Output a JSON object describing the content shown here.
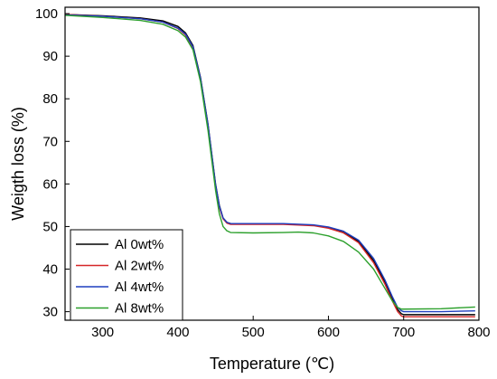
{
  "chart_data": {
    "type": "line",
    "title": "",
    "xlabel": "Temperature (℃)",
    "ylabel": "Weigth loss (%)",
    "xlim": [
      250,
      800
    ],
    "ylim": [
      28,
      101.5
    ],
    "x_ticks": [
      300,
      400,
      500,
      600,
      700,
      800
    ],
    "y_ticks": [
      30,
      40,
      50,
      60,
      70,
      80,
      90,
      100
    ],
    "grid": false,
    "legend_position": "bottom-left",
    "series": [
      {
        "name": "Al 0wt%",
        "color": "#000000",
        "points": [
          [
            250,
            99.8
          ],
          [
            300,
            99.5
          ],
          [
            350,
            99.0
          ],
          [
            380,
            98.3
          ],
          [
            400,
            97.0
          ],
          [
            410,
            95.5
          ],
          [
            420,
            92.5
          ],
          [
            430,
            85.0
          ],
          [
            440,
            74.0
          ],
          [
            445,
            67.0
          ],
          [
            450,
            60.0
          ],
          [
            455,
            55.0
          ],
          [
            460,
            52.0
          ],
          [
            465,
            51.0
          ],
          [
            470,
            50.7
          ],
          [
            500,
            50.6
          ],
          [
            540,
            50.6
          ],
          [
            580,
            50.3
          ],
          [
            600,
            49.8
          ],
          [
            620,
            48.8
          ],
          [
            640,
            46.5
          ],
          [
            660,
            42.0
          ],
          [
            675,
            37.0
          ],
          [
            685,
            33.0
          ],
          [
            692,
            30.5
          ],
          [
            697,
            29.5
          ],
          [
            700,
            29.3
          ],
          [
            750,
            29.3
          ],
          [
            795,
            29.3
          ]
        ]
      },
      {
        "name": "Al 2wt%",
        "color": "#d62728",
        "points": [
          [
            250,
            99.8
          ],
          [
            300,
            99.4
          ],
          [
            350,
            98.8
          ],
          [
            380,
            98.0
          ],
          [
            400,
            96.5
          ],
          [
            410,
            95.0
          ],
          [
            420,
            92.0
          ],
          [
            430,
            84.5
          ],
          [
            440,
            73.5
          ],
          [
            445,
            66.5
          ],
          [
            450,
            59.5
          ],
          [
            455,
            54.5
          ],
          [
            460,
            51.8
          ],
          [
            465,
            50.8
          ],
          [
            470,
            50.5
          ],
          [
            500,
            50.5
          ],
          [
            540,
            50.5
          ],
          [
            580,
            50.2
          ],
          [
            600,
            49.6
          ],
          [
            620,
            48.5
          ],
          [
            640,
            46.2
          ],
          [
            660,
            41.5
          ],
          [
            675,
            36.5
          ],
          [
            685,
            32.5
          ],
          [
            692,
            30.0
          ],
          [
            697,
            29.0
          ],
          [
            700,
            28.8
          ],
          [
            750,
            28.8
          ],
          [
            795,
            28.8
          ]
        ]
      },
      {
        "name": "Al 4wt%",
        "color": "#1f3fbf",
        "points": [
          [
            250,
            99.7
          ],
          [
            300,
            99.4
          ],
          [
            350,
            98.8
          ],
          [
            380,
            98.0
          ],
          [
            400,
            96.6
          ],
          [
            410,
            95.2
          ],
          [
            420,
            92.2
          ],
          [
            430,
            84.8
          ],
          [
            440,
            73.8
          ],
          [
            445,
            66.8
          ],
          [
            450,
            59.8
          ],
          [
            455,
            54.8
          ],
          [
            460,
            52.0
          ],
          [
            465,
            51.0
          ],
          [
            470,
            50.7
          ],
          [
            500,
            50.7
          ],
          [
            540,
            50.7
          ],
          [
            580,
            50.4
          ],
          [
            600,
            49.9
          ],
          [
            620,
            48.9
          ],
          [
            640,
            46.8
          ],
          [
            660,
            42.5
          ],
          [
            675,
            37.5
          ],
          [
            685,
            33.5
          ],
          [
            692,
            31.0
          ],
          [
            697,
            30.2
          ],
          [
            700,
            30.0
          ],
          [
            750,
            30.0
          ],
          [
            795,
            30.2
          ]
        ]
      },
      {
        "name": "Al 8wt%",
        "color": "#2ca02c",
        "points": [
          [
            250,
            99.6
          ],
          [
            300,
            99.1
          ],
          [
            350,
            98.4
          ],
          [
            380,
            97.5
          ],
          [
            400,
            96.0
          ],
          [
            410,
            94.5
          ],
          [
            420,
            91.5
          ],
          [
            430,
            84.0
          ],
          [
            440,
            72.5
          ],
          [
            445,
            65.5
          ],
          [
            450,
            58.5
          ],
          [
            455,
            53.0
          ],
          [
            460,
            50.0
          ],
          [
            465,
            49.0
          ],
          [
            470,
            48.6
          ],
          [
            500,
            48.5
          ],
          [
            540,
            48.6
          ],
          [
            560,
            48.7
          ],
          [
            580,
            48.5
          ],
          [
            600,
            47.8
          ],
          [
            620,
            46.5
          ],
          [
            640,
            44.0
          ],
          [
            660,
            40.0
          ],
          [
            675,
            35.5
          ],
          [
            685,
            32.5
          ],
          [
            692,
            31.0
          ],
          [
            697,
            30.6
          ],
          [
            700,
            30.6
          ],
          [
            750,
            30.7
          ],
          [
            795,
            31.1
          ]
        ]
      }
    ]
  }
}
